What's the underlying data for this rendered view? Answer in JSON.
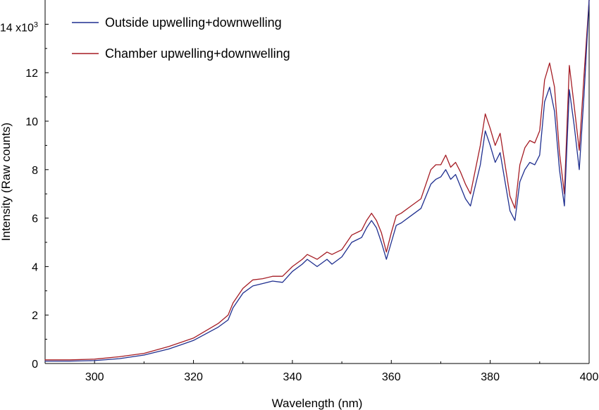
{
  "chart_data": {
    "type": "line",
    "title": "",
    "xlabel": "Wavelength (nm)",
    "ylabel": "Intensity (Raw counts)",
    "xlim": [
      290,
      400
    ],
    "ylim": [
      0,
      15000
    ],
    "x_ticks": [
      300,
      320,
      340,
      360,
      380,
      400
    ],
    "y_ticks": [
      0,
      2000,
      4000,
      6000,
      8000,
      10000,
      12000,
      14000
    ],
    "y_tick_labels": [
      "0",
      "2",
      "4",
      "6",
      "8",
      "10",
      "12",
      "14 x10"
    ],
    "y_scale_exponent": "3",
    "legend": {
      "placement": "top-left"
    },
    "grid": false,
    "series": [
      {
        "name": "Outside upwelling+downwelling",
        "color": "#1f2f8f",
        "x": [
          290,
          295,
          300,
          305,
          310,
          315,
          320,
          325,
          327,
          328,
          330,
          332,
          334,
          336,
          338,
          340,
          342,
          343,
          345,
          347,
          348,
          350,
          352,
          354,
          355,
          356,
          357,
          358,
          359,
          360,
          361,
          362,
          364,
          366,
          368,
          369,
          370,
          371,
          372,
          373,
          374,
          375,
          376,
          378,
          379,
          380,
          381,
          382,
          383,
          384,
          385,
          386,
          387,
          388,
          389,
          390,
          391,
          392,
          393,
          394,
          395,
          396,
          397,
          398,
          399,
          400
        ],
        "y": [
          100,
          100,
          120,
          200,
          350,
          600,
          950,
          1500,
          1800,
          2300,
          2900,
          3200,
          3300,
          3400,
          3350,
          3800,
          4100,
          4300,
          4000,
          4300,
          4100,
          4400,
          5000,
          5200,
          5600,
          5900,
          5600,
          5000,
          4300,
          5000,
          5700,
          5800,
          6100,
          6400,
          7400,
          7600,
          7700,
          8000,
          7600,
          7800,
          7300,
          6800,
          6500,
          8200,
          9600,
          9000,
          8300,
          8700,
          7500,
          6300,
          5900,
          7500,
          8000,
          8300,
          8200,
          8600,
          10800,
          11400,
          10400,
          8000,
          6500,
          11300,
          9800,
          8000,
          11200,
          15000
        ]
      },
      {
        "name": "Chamber upwelling+downwelling",
        "color": "#a51c24",
        "x": [
          290,
          295,
          300,
          305,
          310,
          315,
          320,
          325,
          327,
          328,
          330,
          332,
          334,
          336,
          338,
          340,
          342,
          343,
          345,
          347,
          348,
          350,
          352,
          354,
          355,
          356,
          357,
          358,
          359,
          360,
          361,
          362,
          364,
          366,
          368,
          369,
          370,
          371,
          372,
          373,
          374,
          375,
          376,
          378,
          379,
          380,
          381,
          382,
          383,
          384,
          385,
          386,
          387,
          388,
          389,
          390,
          391,
          392,
          393,
          394,
          395,
          396,
          397,
          398,
          399,
          400
        ],
        "y": [
          150,
          150,
          180,
          280,
          420,
          700,
          1050,
          1650,
          2000,
          2500,
          3100,
          3450,
          3500,
          3600,
          3600,
          4000,
          4300,
          4500,
          4300,
          4600,
          4500,
          4700,
          5300,
          5500,
          5900,
          6200,
          5900,
          5400,
          4600,
          5400,
          6100,
          6200,
          6500,
          6800,
          8000,
          8200,
          8200,
          8600,
          8100,
          8300,
          7900,
          7400,
          7000,
          9000,
          10300,
          9700,
          9000,
          9500,
          8200,
          6900,
          6400,
          8200,
          8900,
          9200,
          9100,
          9600,
          11700,
          12400,
          11400,
          8700,
          7000,
          12300,
          10600,
          8800,
          12000,
          15000
        ]
      }
    ]
  }
}
